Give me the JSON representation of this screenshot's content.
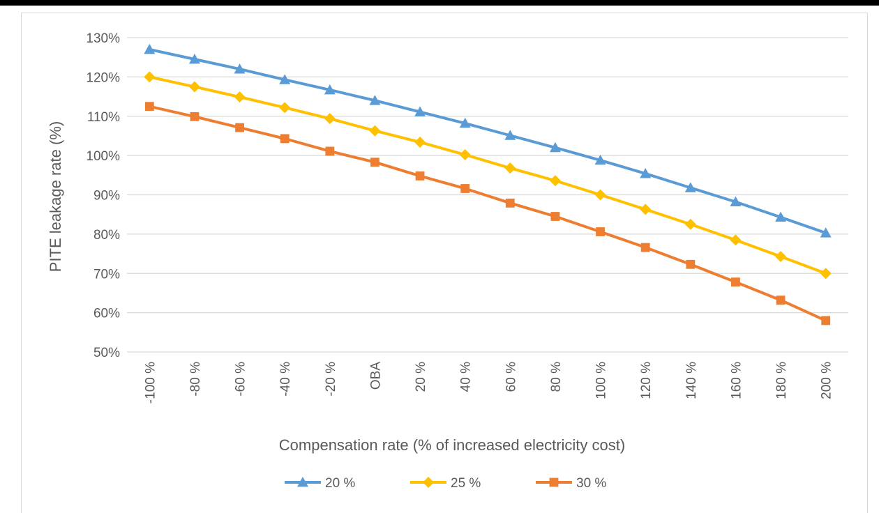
{
  "chart_data": {
    "type": "line",
    "xlabel": "Compensation rate (% of increased electricity cost)",
    "ylabel": "PITE leakage rate (%)",
    "categories": [
      "-100 %",
      "-80 %",
      "-60 %",
      "-40 %",
      "-20 %",
      "OBA",
      "20 %",
      "40 %",
      "60 %",
      "80 %",
      "100 %",
      "120 %",
      "140 %",
      "160 %",
      "180 %",
      "200 %"
    ],
    "y_ticks": [
      "50%",
      "60%",
      "70%",
      "80%",
      "90%",
      "100%",
      "110%",
      "120%",
      "130%"
    ],
    "ylim": [
      50,
      130
    ],
    "grid": true,
    "legend_position": "bottom",
    "series": [
      {
        "name": "20 %",
        "color": "#5b9bd5",
        "marker": "triangle",
        "values": [
          127,
          124.5,
          122,
          119.3,
          116.7,
          114,
          111.1,
          108.2,
          105.1,
          102,
          98.8,
          95.4,
          91.8,
          88.2,
          84.3,
          80.3
        ]
      },
      {
        "name": "25 %",
        "color": "#ffc000",
        "marker": "diamond",
        "values": [
          120,
          117.5,
          114.9,
          112.2,
          109.4,
          106.3,
          103.4,
          100.2,
          96.8,
          93.6,
          90,
          86.3,
          82.5,
          78.5,
          74.3,
          70
        ]
      },
      {
        "name": "30 %",
        "color": "#ed7d31",
        "marker": "square",
        "values": [
          112.5,
          109.9,
          107.1,
          104.3,
          101.1,
          98.3,
          94.8,
          91.6,
          87.9,
          84.5,
          80.6,
          76.6,
          72.3,
          67.8,
          63.2,
          58
        ]
      }
    ]
  }
}
